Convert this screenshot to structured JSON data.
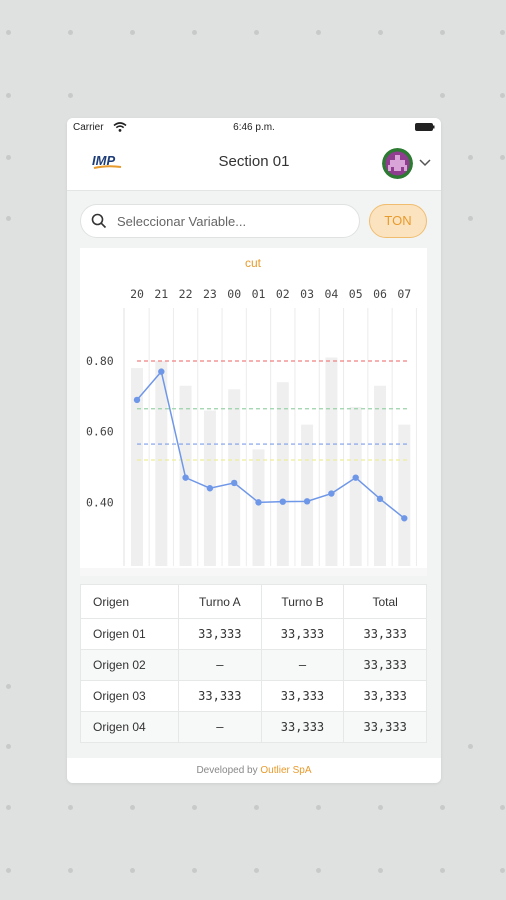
{
  "status_bar": {
    "carrier": "Carrier",
    "time": "6:46 p.m."
  },
  "header": {
    "logo_text": "IMP",
    "title": "Section 01"
  },
  "search": {
    "placeholder": "Seleccionar Variable..."
  },
  "unit_button": {
    "label": "TON"
  },
  "chart_data": {
    "type": "line",
    "title": "cut",
    "categories": [
      "20",
      "21",
      "22",
      "23",
      "00",
      "01",
      "02",
      "03",
      "04",
      "05",
      "06",
      "07"
    ],
    "series": [
      {
        "values": [
          0.69,
          0.77,
          0.47,
          0.44,
          0.455,
          0.4,
          0.402,
          0.403,
          0.425,
          0.47,
          0.41,
          0.355
        ],
        "color": "#6f97e8"
      }
    ],
    "bars": [
      0.78,
      0.8,
      0.73,
      0.66,
      0.72,
      0.55,
      0.74,
      0.62,
      0.81,
      0.67,
      0.73,
      0.62
    ],
    "reference_lines": [
      {
        "value": 0.8,
        "color": "#f08080"
      },
      {
        "value": 0.665,
        "color": "#9ad3a9"
      },
      {
        "value": 0.565,
        "color": "#7d9eea"
      },
      {
        "value": 0.52,
        "color": "#eeee99"
      }
    ],
    "yticks": [
      "0.80",
      "0.60",
      "0.40"
    ],
    "ylim": [
      0.22,
      0.95
    ],
    "grid": true
  },
  "table": {
    "headers": [
      "Origen",
      "Turno A",
      "Turno B",
      "Total"
    ],
    "rows": [
      [
        "Origen 01",
        "33,333",
        "33,333",
        "33,333"
      ],
      [
        "Origen 02",
        "–",
        "–",
        "33,333"
      ],
      [
        "Origen 03",
        "33,333",
        "33,333",
        "33,333"
      ],
      [
        "Origen 04",
        "–",
        "33,333",
        "33,333"
      ]
    ]
  },
  "footer": {
    "prefix": "Developed by",
    "brand": "Outlier SpA"
  },
  "colors": {
    "accent": "#e89b2d",
    "line": "#6f97e8"
  }
}
